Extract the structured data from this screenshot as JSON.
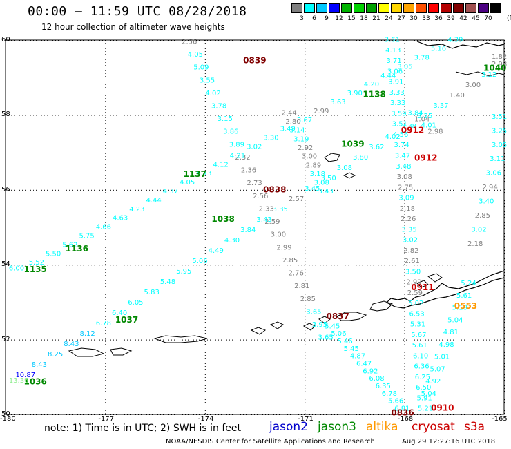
{
  "title": "00:00 – 11:59 UTC 08/28/2018",
  "subtitle": "12 hour collection of altimeter wave heights",
  "legend": {
    "units": "(ft)",
    "bins": [
      {
        "label": "3",
        "color": "#7f7f7f"
      },
      {
        "label": "6",
        "color": "#00ffff"
      },
      {
        "label": "9",
        "color": "#00c8ff"
      },
      {
        "label": "12",
        "color": "#0000ff"
      },
      {
        "label": "15",
        "color": "#00b400"
      },
      {
        "label": "18",
        "color": "#00d200"
      },
      {
        "label": "21",
        "color": "#00a000"
      },
      {
        "label": "24",
        "color": "#ffff00"
      },
      {
        "label": "27",
        "color": "#ffd700"
      },
      {
        "label": "30",
        "color": "#ffa500"
      },
      {
        "label": "33",
        "color": "#ff5000"
      },
      {
        "label": "36",
        "color": "#ff0000"
      },
      {
        "label": "39",
        "color": "#b40000"
      },
      {
        "label": "42",
        "color": "#800000"
      },
      {
        "label": "45",
        "color": "#a05050"
      },
      {
        "label": "70",
        "color": "#4b0082"
      },
      {
        "label": "",
        "color": "#000000"
      }
    ]
  },
  "axes": {
    "lat_ticks": [
      "60",
      "58",
      "56",
      "54",
      "52",
      "50"
    ],
    "lon_ticks": [
      "-180",
      "-177",
      "-174",
      "-171",
      "-168",
      "-165"
    ]
  },
  "footer": {
    "note": "note: 1) Time is in UTC; 2) SWH is in feet",
    "satellites": [
      {
        "name": "jason2",
        "color": "#0000cc"
      },
      {
        "name": "jason3",
        "color": "#008800"
      },
      {
        "name": "altika",
        "color": "#ff9900"
      },
      {
        "name": "cryosat",
        "color": "#cc0000"
      },
      {
        "name": "s3a",
        "color": "#cc0000"
      }
    ],
    "credit": "NOAA/NESDIS Center for Satellite Applications and Research",
    "timestamp": "Aug 29 12:27:16 UTC 2018"
  },
  "time_labels": [
    {
      "text": "0839",
      "color": "#800000",
      "lon": -172.85,
      "lat": 59.38
    },
    {
      "text": "1138",
      "color": "#008800",
      "lon": -169.25,
      "lat": 58.48
    },
    {
      "text": "1040",
      "color": "#008800",
      "lon": -165.25,
      "lat": 59.18
    },
    {
      "text": "0912",
      "color": "#cc0000",
      "lon": -168.1,
      "lat": 57.52
    },
    {
      "text": "1039",
      "color": "#008800",
      "lon": -169.9,
      "lat": 57.15
    },
    {
      "text": "0912",
      "color": "#cc0000",
      "lon": -167.7,
      "lat": 56.78
    },
    {
      "text": "1137",
      "color": "#008800",
      "lon": -174.65,
      "lat": 56.35
    },
    {
      "text": "0838",
      "color": "#800000",
      "lon": -172.25,
      "lat": 55.93
    },
    {
      "text": "1038",
      "color": "#008800",
      "lon": -173.8,
      "lat": 55.15
    },
    {
      "text": "1136",
      "color": "#008800",
      "lon": -178.2,
      "lat": 54.35
    },
    {
      "text": "1135",
      "color": "#008800",
      "lon": -179.45,
      "lat": 53.8
    },
    {
      "text": "0911",
      "color": "#cc0000",
      "lon": -167.8,
      "lat": 53.32
    },
    {
      "text": "0553",
      "color": "#ff9900",
      "lon": -166.5,
      "lat": 52.82
    },
    {
      "text": "0837",
      "color": "#800000",
      "lon": -170.35,
      "lat": 52.55
    },
    {
      "text": "1037",
      "color": "#008800",
      "lon": -176.7,
      "lat": 52.45
    },
    {
      "text": "1036",
      "color": "#008800",
      "lon": -179.45,
      "lat": 50.8
    },
    {
      "text": "0836",
      "color": "#800000",
      "lon": -168.4,
      "lat": 49.97
    },
    {
      "text": "0910",
      "color": "#cc0000",
      "lon": -167.2,
      "lat": 50.1
    }
  ],
  "tracks": [
    {
      "name": "s3a-0839",
      "start": [
        -174.7,
        59.9
      ],
      "end": [
        -170.6,
        52.0
      ],
      "values": [
        "2.56",
        "4.05",
        "5.09",
        "3.55",
        "4.02",
        "3.78",
        "3.15",
        "3.86",
        "3.89",
        "2.32",
        "2.36",
        "2.73",
        "2.56",
        "2.33",
        "2.59",
        "3.00",
        "2.99",
        "2.85",
        "2.76",
        "2.81",
        "2.85",
        "3.65",
        "3.95",
        "3.65"
      ],
      "colors": [
        "#7f7f7f",
        "#00ffff",
        "#00ffff",
        "#00ffff",
        "#00ffff",
        "#00ffff",
        "#00ffff",
        "#00ffff",
        "#00ffff",
        "#7f7f7f",
        "#7f7f7f",
        "#7f7f7f",
        "#7f7f7f",
        "#7f7f7f",
        "#7f7f7f",
        "#7f7f7f",
        "#7f7f7f",
        "#7f7f7f",
        "#7f7f7f",
        "#7f7f7f",
        "#7f7f7f",
        "#00ffff",
        "#00ffff",
        "#00ffff"
      ]
    },
    {
      "name": "jason3-1138",
      "start": [
        -179.3,
        54.0
      ],
      "end": [
        -166.7,
        59.95
      ],
      "values": [
        "5.52",
        "5.50",
        "5.62",
        "5.75",
        "4.66",
        "4.63",
        "4.23",
        "4.44",
        "4.37",
        "4.05",
        "4.13",
        "4.12",
        "4.21",
        "3.02",
        "3.30",
        "3.49",
        "3.67",
        "2.99",
        "3.63",
        "3.90",
        "4.20",
        "4.44",
        "3.05",
        "3.78",
        "5.16",
        "4.39"
      ],
      "colors": [
        "#00ffff",
        "#00ffff",
        "#00ffff",
        "#00ffff",
        "#00ffff",
        "#00ffff",
        "#00ffff",
        "#00ffff",
        "#00ffff",
        "#00ffff",
        "#00ffff",
        "#00ffff",
        "#00ffff",
        "#00ffff",
        "#00ffff",
        "#00ffff",
        "#00ffff",
        "#7f7f7f",
        "#00ffff",
        "#00ffff",
        "#00ffff",
        "#00ffff",
        "#00ffff",
        "#00ffff",
        "#00ffff",
        "#00ffff"
      ]
    },
    {
      "name": "jason3-1036",
      "start": [
        -179.7,
        51.0
      ],
      "end": [
        -165.2,
        59.3
      ],
      "values": [
        "10.87",
        "8.43",
        "8.25",
        "8.43",
        "8.12",
        "6.78",
        "6.40",
        "6.05",
        "5.83",
        "5.48",
        "5.95",
        "5.06",
        "4.49",
        "4.30",
        "3.84",
        "3.43",
        "3.35",
        "2.57",
        "3.45",
        "3.50",
        "3.08",
        "3.80",
        "3.62",
        "4.02",
        "3.38",
        "3.25",
        "3.37",
        "1.40",
        "3.00",
        "3.12",
        "2.98"
      ],
      "colors": [
        "#0000ff",
        "#00c8ff",
        "#00c8ff",
        "#00c8ff",
        "#00c8ff",
        "#00ffff",
        "#00ffff",
        "#00ffff",
        "#00ffff",
        "#00ffff",
        "#00ffff",
        "#00ffff",
        "#00ffff",
        "#00ffff",
        "#00ffff",
        "#00ffff",
        "#00ffff",
        "#7f7f7f",
        "#00ffff",
        "#00ffff",
        "#00ffff",
        "#00ffff",
        "#00ffff",
        "#00ffff",
        "#00ffff",
        "#00ffff",
        "#00ffff",
        "#7f7f7f",
        "#7f7f7f",
        "#00ffff",
        "#7f7f7f"
      ]
    },
    {
      "name": "cryosat-0912",
      "start": [
        -168.6,
        59.95
      ],
      "end": [
        -167.6,
        50.1
      ],
      "values": [
        "3.61",
        "4.13",
        "3.71",
        "3.06",
        "3.91",
        "3.33",
        "3.33",
        "3.59",
        "3.51",
        "4.56",
        "3.74",
        "3.47",
        "3.48",
        "3.08",
        "2.75",
        "3.09",
        "2.18",
        "2.26",
        "3.35",
        "3.02",
        "2.82",
        "2.61",
        "3.50",
        "2.99",
        "2.59",
        "5.02",
        "6.53",
        "5.31",
        "5.67",
        "5.61",
        "6.10",
        "6.36",
        "6.25",
        "6.50",
        "5.91",
        "5.21"
      ],
      "colors": [
        "#00ffff",
        "#00ffff",
        "#00ffff",
        "#00ffff",
        "#00ffff",
        "#00ffff",
        "#00ffff",
        "#00ffff",
        "#00ffff",
        "#00ffff",
        "#00ffff",
        "#00ffff",
        "#00ffff",
        "#7f7f7f",
        "#7f7f7f",
        "#00ffff",
        "#7f7f7f",
        "#7f7f7f",
        "#00ffff",
        "#00ffff",
        "#7f7f7f",
        "#7f7f7f",
        "#00ffff",
        "#7f7f7f",
        "#7f7f7f",
        "#00ffff",
        "#00ffff",
        "#00ffff",
        "#00ffff",
        "#00ffff",
        "#00ffff",
        "#00ffff",
        "#00ffff",
        "#00ffff",
        "#00ffff",
        "#00ffff"
      ]
    },
    {
      "name": "s3a-0836",
      "start": [
        -170.4,
        52.3
      ],
      "end": [
        -168.3,
        50.1
      ],
      "values": [
        "5.45",
        "5.06",
        "5.46",
        "5.45",
        "4.87",
        "6.47",
        "6.92",
        "6.08",
        "6.35",
        "6.78",
        "5.66",
        "6.81"
      ],
      "colors": [
        "#00ffff",
        "#00ffff",
        "#00ffff",
        "#00ffff",
        "#00ffff",
        "#00ffff",
        "#00ffff",
        "#00ffff",
        "#00ffff",
        "#00ffff",
        "#00ffff",
        "#00ffff"
      ]
    },
    {
      "name": "cryosat-0911",
      "start": [
        -166.3,
        53.45
      ],
      "end": [
        -167.5,
        50.5
      ],
      "values": [
        "5.24",
        "5.61",
        "5.18",
        "5.04",
        "4.81",
        "4.98",
        "5.01",
        "5.07",
        "4.92",
        "5.04"
      ],
      "colors": [
        "#00ffff",
        "#00ffff",
        "#00ffff",
        "#00ffff",
        "#00ffff",
        "#00ffff",
        "#00ffff",
        "#00ffff",
        "#00ffff",
        "#00ffff"
      ]
    },
    {
      "name": "jason2-1040",
      "start": [
        -165.1,
        57.9
      ],
      "end": [
        -166.1,
        54.5
      ],
      "values": [
        "3.51",
        "3.25",
        "3.05",
        "3.11",
        "3.06",
        "2.94",
        "3.40",
        "2.85",
        "3.02",
        "2.18"
      ],
      "colors": [
        "#00ffff",
        "#00ffff",
        "#00ffff",
        "#00ffff",
        "#00ffff",
        "#7f7f7f",
        "#00ffff",
        "#7f7f7f",
        "#00ffff",
        "#7f7f7f"
      ]
    },
    {
      "name": "s3a-0838b",
      "start": [
        -171.7,
        58.0
      ],
      "end": [
        -170.6,
        55.9
      ],
      "values": [
        "2.44",
        "2.80",
        "3.14",
        "3.19",
        "2.92",
        "3.00",
        "2.89",
        "3.18",
        "3.08",
        "3.43"
      ],
      "colors": [
        "#7f7f7f",
        "#7f7f7f",
        "#00ffff",
        "#00ffff",
        "#7f7f7f",
        "#7f7f7f",
        "#7f7f7f",
        "#00ffff",
        "#00ffff",
        "#00ffff"
      ]
    },
    {
      "name": "jason3-late",
      "start": [
        -167.9,
        58.0
      ],
      "end": [
        -167.3,
        57.5
      ],
      "values": [
        "3.84",
        "1.04",
        "4.01",
        "2.98"
      ],
      "colors": [
        "#00ffff",
        "#7f7f7f",
        "#00ffff",
        "#7f7f7f"
      ]
    }
  ],
  "small_labels": [
    {
      "text": "13.36",
      "color": "#90ee90",
      "lon": -179.9,
      "lat": 50.85
    },
    {
      "text": "6.00",
      "color": "#00ffff",
      "lon": -179.9,
      "lat": 53.85
    },
    {
      "text": "1.82",
      "color": "#7f7f7f",
      "lon": -165.3,
      "lat": 59.5
    }
  ]
}
